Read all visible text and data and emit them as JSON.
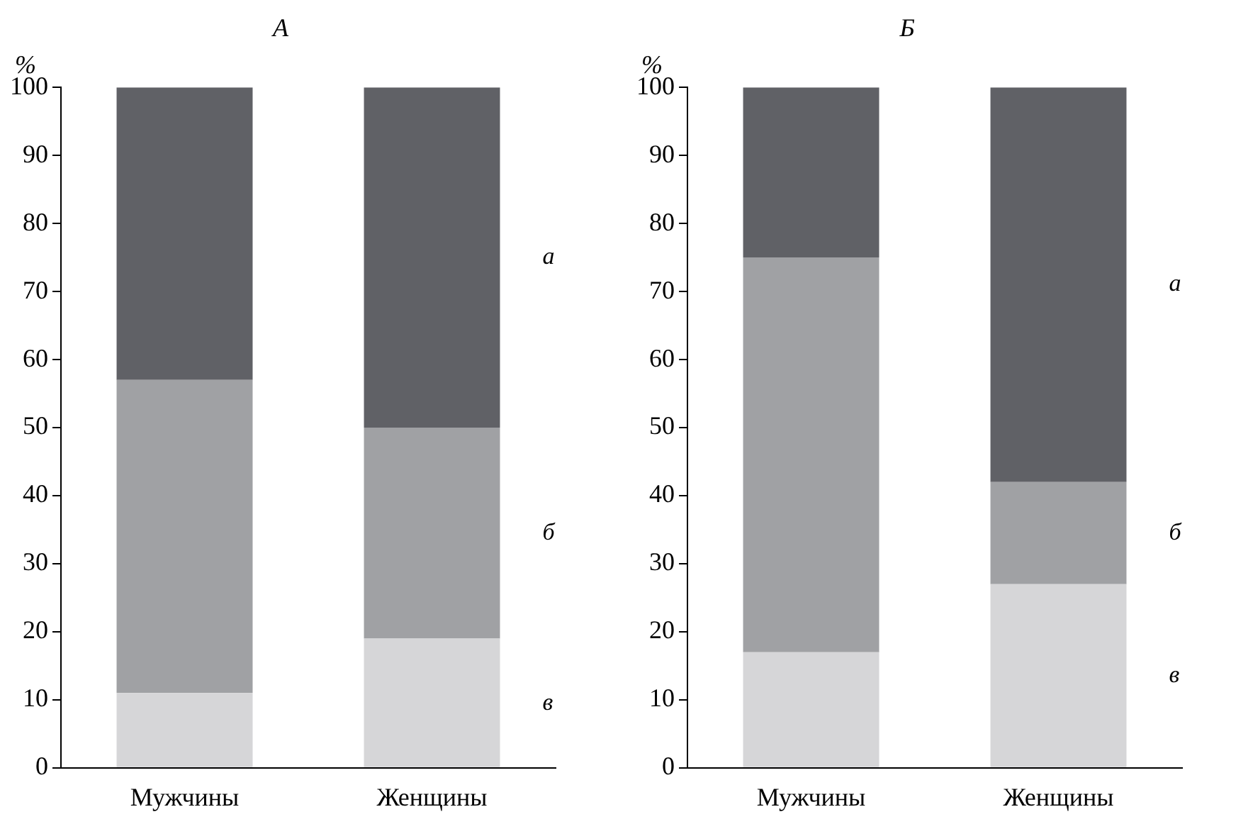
{
  "chart_data": [
    {
      "type": "bar",
      "title": "А",
      "ylabel": "%",
      "categories": [
        "Мужчины",
        "Женщины"
      ],
      "stacked": true,
      "ylim": [
        0,
        100
      ],
      "yticks": [
        0,
        10,
        20,
        30,
        40,
        50,
        60,
        70,
        80,
        90,
        100
      ],
      "grid": false,
      "legend": false,
      "series": [
        {
          "name": "в",
          "color": "#d6d6d8",
          "values": [
            11,
            19
          ]
        },
        {
          "name": "б",
          "color": "#a0a1a4",
          "values": [
            46,
            31
          ]
        },
        {
          "name": "а",
          "color": "#606166",
          "values": [
            43,
            50
          ]
        }
      ]
    },
    {
      "type": "bar",
      "title": "Б",
      "ylabel": "%",
      "categories": [
        "Мужчины",
        "Женщины"
      ],
      "stacked": true,
      "ylim": [
        0,
        100
      ],
      "yticks": [
        0,
        10,
        20,
        30,
        40,
        50,
        60,
        70,
        80,
        90,
        100
      ],
      "grid": false,
      "legend": false,
      "series": [
        {
          "name": "в",
          "color": "#d6d6d8",
          "values": [
            17,
            27
          ]
        },
        {
          "name": "б",
          "color": "#a0a1a4",
          "values": [
            58,
            15
          ]
        },
        {
          "name": "а",
          "color": "#606166",
          "values": [
            25,
            58
          ]
        }
      ]
    }
  ]
}
